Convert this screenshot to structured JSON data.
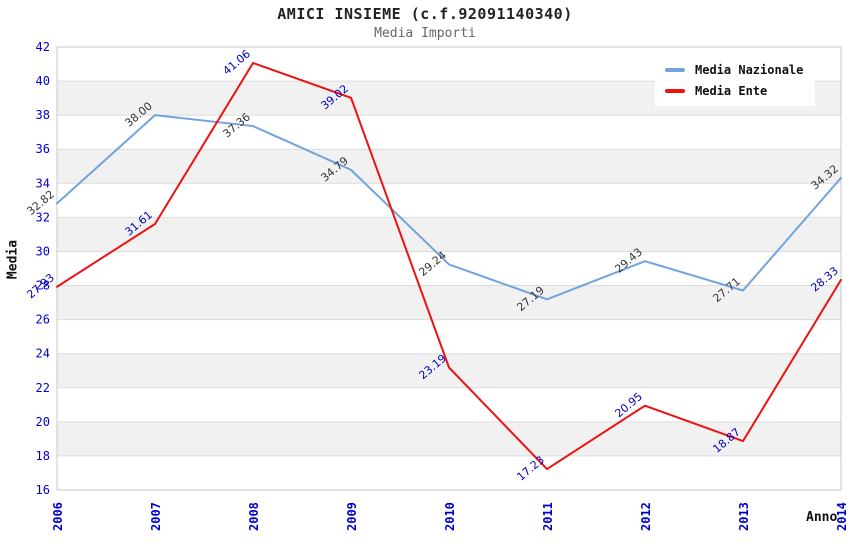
{
  "header": {
    "title": "AMICI INSIEME (c.f.92091140340)",
    "subtitle": "Media Importi"
  },
  "chart_data": {
    "type": "line",
    "categories": [
      "2006",
      "2007",
      "2008",
      "2009",
      "2010",
      "2011",
      "2012",
      "2013",
      "2014"
    ],
    "series": [
      {
        "name": "Media Nazionale",
        "color": "#72a3dc",
        "label_color": "#333333",
        "values": [
          32.82,
          38.0,
          37.36,
          34.79,
          29.24,
          27.19,
          29.43,
          27.71,
          34.32
        ]
      },
      {
        "name": "Media Ente",
        "color": "#ee1111",
        "label_color": "#0000bb",
        "values": [
          27.93,
          31.61,
          41.06,
          39.02,
          23.19,
          17.23,
          20.95,
          18.87,
          28.33
        ]
      }
    ],
    "xlabel": "Anno",
    "ylabel": "Media",
    "ylim": [
      16,
      42
    ],
    "ytick_step": 2,
    "legend_position": "top-right",
    "grid": true,
    "banding": true,
    "axis_tick_color": "#0000cc",
    "band_color": "#f1f1f1",
    "grid_color": "#dcdcdc",
    "border_color": "#c8c8c8",
    "value_label_decimals": 2
  }
}
